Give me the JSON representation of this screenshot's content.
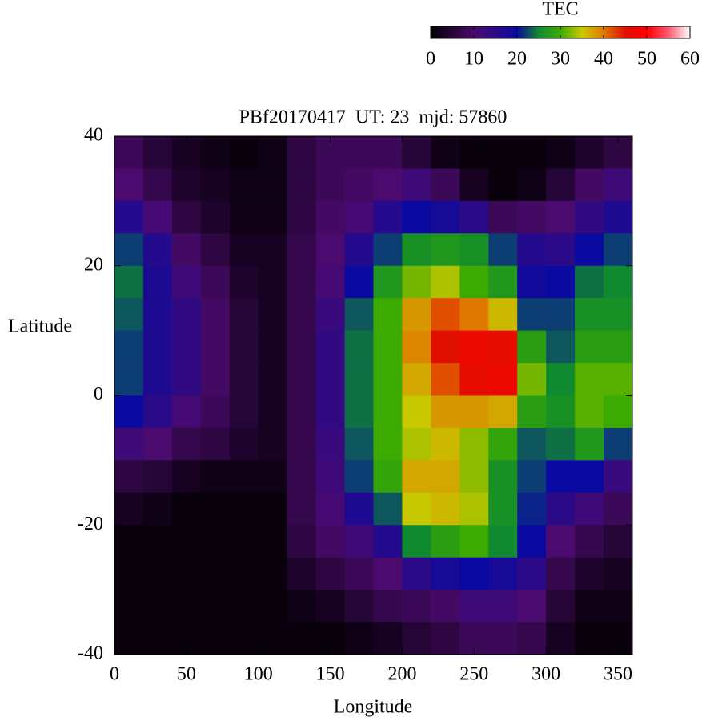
{
  "chart_data": {
    "type": "heatmap",
    "title": "PBf20170417  UT: 23  mjd: 57860",
    "xlabel": "Longitude",
    "ylabel": "Latitude",
    "colorbar_label": "TEC",
    "xlim": [
      0,
      360
    ],
    "ylim": [
      -40,
      40
    ],
    "xticks": [
      0,
      50,
      100,
      150,
      200,
      250,
      300,
      350
    ],
    "yticks": [
      -40,
      -20,
      0,
      20,
      40
    ],
    "clim": [
      0,
      60
    ],
    "cticks": [
      0,
      10,
      20,
      30,
      40,
      50,
      60
    ],
    "colormap": [
      [
        0,
        "#000000"
      ],
      [
        10,
        "#4b0a6e"
      ],
      [
        20,
        "#0a0aa0"
      ],
      [
        25,
        "#108a30"
      ],
      [
        30,
        "#3caa00"
      ],
      [
        35,
        "#c8c800"
      ],
      [
        40,
        "#e07800"
      ],
      [
        45,
        "#e01000"
      ],
      [
        50,
        "#ff0000"
      ],
      [
        55,
        "#ff5a6e"
      ],
      [
        60,
        "#ffffff"
      ]
    ],
    "xbins": [
      0,
      20,
      40,
      60,
      80,
      100,
      120,
      140,
      160,
      180,
      200,
      220,
      240,
      260,
      280,
      300,
      320,
      340,
      360
    ],
    "ybins": [
      40,
      35,
      30,
      25,
      20,
      15,
      10,
      5,
      0,
      -5,
      -10,
      -15,
      -20,
      -25,
      -30,
      -35,
      -40
    ],
    "values": [
      [
        8,
        5,
        3,
        2,
        1,
        2,
        6,
        8,
        8,
        8,
        5,
        2,
        1,
        1,
        1,
        2,
        4,
        6
      ],
      [
        10,
        7,
        4,
        3,
        2,
        2,
        6,
        8,
        9,
        10,
        12,
        8,
        3,
        1,
        2,
        5,
        9,
        12
      ],
      [
        16,
        11,
        6,
        4,
        2,
        2,
        6,
        9,
        11,
        16,
        20,
        18,
        15,
        8,
        9,
        10,
        14,
        17
      ],
      [
        22,
        16,
        9,
        6,
        3,
        3,
        7,
        10,
        16,
        22,
        26,
        27,
        26,
        22,
        16,
        15,
        20,
        22
      ],
      [
        24,
        17,
        12,
        8,
        4,
        3,
        7,
        11,
        20,
        27,
        32,
        34,
        30,
        27,
        19,
        20,
        24,
        25
      ],
      [
        23,
        17,
        14,
        9,
        5,
        3,
        7,
        13,
        23,
        30,
        38,
        42,
        40,
        36,
        22,
        22,
        26,
        26
      ],
      [
        22,
        17,
        14,
        9,
        5,
        3,
        7,
        14,
        24,
        30,
        39,
        45,
        47,
        46,
        28,
        23,
        28,
        28
      ],
      [
        22,
        17,
        14,
        9,
        5,
        3,
        7,
        14,
        24,
        30,
        37,
        42,
        46,
        47,
        32,
        25,
        31,
        31
      ],
      [
        20,
        15,
        11,
        8,
        5,
        3,
        7,
        14,
        24,
        30,
        35,
        38,
        38,
        37,
        28,
        26,
        31,
        30
      ],
      [
        12,
        10,
        7,
        6,
        4,
        3,
        7,
        13,
        23,
        30,
        34,
        36,
        33,
        29,
        23,
        24,
        27,
        22
      ],
      [
        6,
        5,
        3,
        2,
        2,
        2,
        7,
        12,
        22,
        29,
        37,
        37,
        33,
        26,
        22,
        20,
        20,
        13
      ],
      [
        3,
        2,
        1,
        1,
        1,
        1,
        7,
        11,
        17,
        23,
        35,
        36,
        34,
        26,
        21,
        15,
        12,
        8
      ],
      [
        1,
        1,
        1,
        1,
        1,
        1,
        6,
        9,
        12,
        16,
        25,
        28,
        30,
        25,
        20,
        10,
        7,
        5
      ],
      [
        1,
        1,
        1,
        1,
        1,
        1,
        4,
        6,
        8,
        10,
        15,
        18,
        20,
        18,
        15,
        7,
        4,
        3
      ],
      [
        1,
        1,
        1,
        1,
        1,
        1,
        2,
        3,
        5,
        7,
        8,
        9,
        12,
        12,
        10,
        5,
        2,
        2
      ],
      [
        1,
        1,
        1,
        1,
        1,
        1,
        1,
        1,
        2,
        3,
        5,
        6,
        8,
        8,
        7,
        3,
        1,
        1
      ]
    ]
  }
}
